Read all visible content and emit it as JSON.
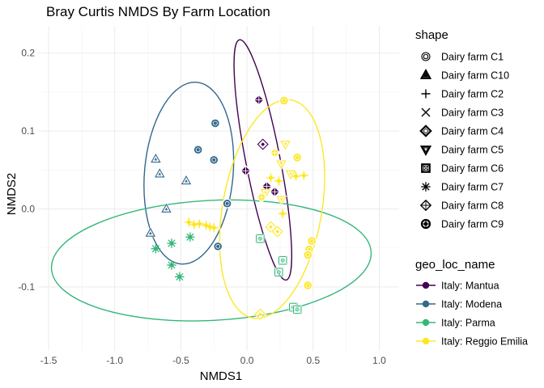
{
  "chart_data": {
    "type": "scatter",
    "title": "Bray Curtis NMDS By Farm Location",
    "xlabel": "NMDS1",
    "ylabel": "NMDS2",
    "xlim": [
      -1.58,
      1.15
    ],
    "ylim": [
      -0.182,
      0.235
    ],
    "x_ticks": [
      -1.5,
      -1.0,
      -0.5,
      0.0,
      0.5,
      1.0
    ],
    "x_tick_labels": [
      "-1.5",
      "-1.0",
      "-0.5",
      "0.0",
      "0.5",
      "1.0"
    ],
    "y_ticks": [
      -0.1,
      0.0,
      0.1,
      0.2
    ],
    "y_tick_labels": [
      "-0.1",
      "0.0",
      "0.1",
      "0.2"
    ],
    "grid": true,
    "legend_position": "right",
    "shape_legend": {
      "title": "shape",
      "entries": [
        {
          "label": "Dairy farm C1",
          "shape": "circle-ring"
        },
        {
          "label": "Dairy farm C10",
          "shape": "triangle-double"
        },
        {
          "label": "Dairy farm C2",
          "shape": "plus"
        },
        {
          "label": "Dairy farm C3",
          "shape": "cross"
        },
        {
          "label": "Dairy farm C4",
          "shape": "diamond-double"
        },
        {
          "label": "Dairy farm C5",
          "shape": "triangle-down-double"
        },
        {
          "label": "Dairy farm C6",
          "shape": "square-cross"
        },
        {
          "label": "Dairy farm C7",
          "shape": "asterisk"
        },
        {
          "label": "Dairy farm C8",
          "shape": "diamond-plus"
        },
        {
          "label": "Dairy farm C9",
          "shape": "circle-plus"
        }
      ]
    },
    "color_legend": {
      "title": "geo_loc_name",
      "entries": [
        {
          "label": "Italy: Mantua",
          "color": "#440154"
        },
        {
          "label": "Italy: Modena",
          "color": "#31688e"
        },
        {
          "label": "Italy: Parma",
          "color": "#35b779"
        },
        {
          "label": "Italy: Reggio Emilia",
          "color": "#fde725"
        }
      ]
    },
    "ellipses": [
      {
        "group": "Italy: Mantua",
        "color": "#440154",
        "cx": 0.12,
        "cy": 0.063,
        "rx": 0.13,
        "ry": 0.157,
        "angle_deg": -11
      },
      {
        "group": "Italy: Modena",
        "color": "#31688e",
        "cx": -0.44,
        "cy": 0.046,
        "rx": 0.335,
        "ry": 0.117,
        "angle_deg": 5
      },
      {
        "group": "Italy: Parma",
        "color": "#35b779",
        "cx": -0.27,
        "cy": -0.066,
        "rx": 1.21,
        "ry": 0.077,
        "angle_deg": -3
      },
      {
        "group": "Italy: Reggio Emilia",
        "color": "#fde725",
        "cx": 0.19,
        "cy": 0.0,
        "rx": 0.375,
        "ry": 0.142,
        "angle_deg": 10
      }
    ],
    "series": [
      {
        "name": "Italy: Mantua",
        "color": "#440154",
        "points": [
          {
            "x": 0.09,
            "y": 0.14,
            "shape": "diamond-plus"
          },
          {
            "x": 0.12,
            "y": 0.083,
            "shape": "diamond-double"
          },
          {
            "x": -0.01,
            "y": 0.049,
            "shape": "diamond-plus"
          },
          {
            "x": 0.15,
            "y": 0.029,
            "shape": "diamond-plus"
          },
          {
            "x": 0.21,
            "y": 0.022,
            "shape": "diamond-plus"
          }
        ]
      },
      {
        "name": "Italy: Modena",
        "color": "#31688e",
        "points": [
          {
            "x": -0.24,
            "y": 0.11,
            "shape": "circle-plus"
          },
          {
            "x": -0.37,
            "y": 0.076,
            "shape": "circle-plus"
          },
          {
            "x": -0.25,
            "y": 0.063,
            "shape": "circle-plus"
          },
          {
            "x": -0.69,
            "y": 0.064,
            "shape": "triangle-double"
          },
          {
            "x": -0.66,
            "y": 0.045,
            "shape": "triangle-double"
          },
          {
            "x": -0.46,
            "y": 0.036,
            "shape": "triangle-double"
          },
          {
            "x": -0.61,
            "y": 0.0,
            "shape": "triangle-double"
          },
          {
            "x": -0.73,
            "y": -0.031,
            "shape": "triangle-double"
          },
          {
            "x": -0.15,
            "y": 0.007,
            "shape": "circle-plus"
          },
          {
            "x": -0.22,
            "y": -0.048,
            "shape": "circle-plus"
          }
        ]
      },
      {
        "name": "Italy: Parma",
        "color": "#35b779",
        "points": [
          {
            "x": -0.43,
            "y": -0.036,
            "shape": "asterisk"
          },
          {
            "x": -0.57,
            "y": -0.044,
            "shape": "asterisk"
          },
          {
            "x": -0.69,
            "y": -0.051,
            "shape": "asterisk"
          },
          {
            "x": -0.57,
            "y": -0.072,
            "shape": "asterisk"
          },
          {
            "x": -0.51,
            "y": -0.087,
            "shape": "asterisk"
          },
          {
            "x": 0.1,
            "y": -0.038,
            "shape": "square-cross"
          },
          {
            "x": 0.27,
            "y": -0.066,
            "shape": "square-cross"
          },
          {
            "x": 0.24,
            "y": -0.081,
            "shape": "square-cross"
          },
          {
            "x": 0.35,
            "y": -0.126,
            "shape": "square-cross"
          },
          {
            "x": 0.38,
            "y": -0.129,
            "shape": "square-cross"
          }
        ]
      },
      {
        "name": "Italy: Reggio Emilia",
        "color": "#fde725",
        "points": [
          {
            "x": 0.28,
            "y": 0.139,
            "shape": "circle-plus"
          },
          {
            "x": 0.29,
            "y": 0.083,
            "shape": "triangle-down-double"
          },
          {
            "x": 0.21,
            "y": 0.072,
            "shape": "diamond-plus"
          },
          {
            "x": 0.26,
            "y": 0.058,
            "shape": "triangle-down-double"
          },
          {
            "x": 0.33,
            "y": 0.045,
            "shape": "triangle-down-double"
          },
          {
            "x": 0.38,
            "y": 0.066,
            "shape": "circle-plus"
          },
          {
            "x": 0.37,
            "y": 0.042,
            "shape": "plus"
          },
          {
            "x": 0.43,
            "y": 0.043,
            "shape": "plus"
          },
          {
            "x": 0.18,
            "y": 0.04,
            "shape": "plus"
          },
          {
            "x": 0.24,
            "y": 0.036,
            "shape": "plus"
          },
          {
            "x": 0.14,
            "y": 0.021,
            "shape": "triangle-down-double"
          },
          {
            "x": 0.11,
            "y": 0.015,
            "shape": "diamond-plus"
          },
          {
            "x": 0.26,
            "y": 0.012,
            "shape": "triangle-down-double"
          },
          {
            "x": 0.27,
            "y": -0.006,
            "shape": "plus"
          },
          {
            "x": -0.31,
            "y": -0.021,
            "shape": "plus"
          },
          {
            "x": -0.36,
            "y": -0.019,
            "shape": "plus"
          },
          {
            "x": -0.4,
            "y": -0.02,
            "shape": "plus"
          },
          {
            "x": -0.28,
            "y": -0.023,
            "shape": "plus"
          },
          {
            "x": -0.25,
            "y": -0.024,
            "shape": "plus"
          },
          {
            "x": -0.44,
            "y": -0.017,
            "shape": "plus"
          },
          {
            "x": 0.18,
            "y": -0.023,
            "shape": "diamond-double"
          },
          {
            "x": 0.23,
            "y": -0.029,
            "shape": "diamond-double"
          },
          {
            "x": 0.49,
            "y": -0.041,
            "shape": "circle-plus"
          },
          {
            "x": 0.47,
            "y": -0.052,
            "shape": "circle-plus"
          },
          {
            "x": 0.46,
            "y": -0.059,
            "shape": "circle-plus"
          },
          {
            "x": 0.46,
            "y": -0.098,
            "shape": "circle-plus"
          },
          {
            "x": 0.1,
            "y": -0.135,
            "shape": "diamond-double"
          }
        ]
      }
    ]
  }
}
